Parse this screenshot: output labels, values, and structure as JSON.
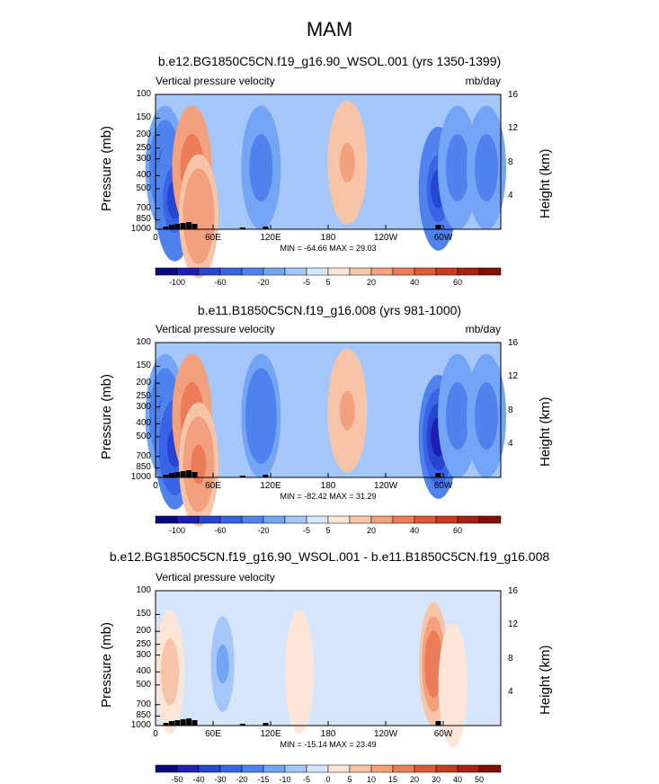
{
  "figure_title": "MAM",
  "colors": {
    "levels": [
      "#0a0a80",
      "#1e1eb4",
      "#2646d2",
      "#3a64e6",
      "#5082ee",
      "#74a4f4",
      "#a4c6f8",
      "#d6e6fa",
      "#fde6d8",
      "#f8c4a8",
      "#f2a07e",
      "#ec7c58",
      "#e05834",
      "#c83a1e",
      "#a82010",
      "#801008"
    ]
  },
  "chart_data": [
    {
      "type": "heatmap",
      "title": "b.e12.BG1850C5CN.f19_g16.90_WSOL.001 (yrs 1350-1399)",
      "variable": "Vertical pressure velocity",
      "units": "mb/day",
      "ylabel": "Pressure (mb)",
      "ylabel_right": "Height (km)",
      "yticks": [
        "100",
        "150",
        "200",
        "250",
        "300",
        "400",
        "500",
        "700",
        "850",
        "1000"
      ],
      "yticks_right": [
        "16",
        "12",
        "8",
        "4"
      ],
      "xticks": [
        "0",
        "60E",
        "120E",
        "180",
        "120W",
        "60W"
      ],
      "minmax": "MIN = -64.66  MAX = 29.03",
      "colorbar_labels": [
        "-100",
        "-60",
        "-20",
        "-5",
        "5",
        "20",
        "40",
        "60"
      ],
      "field": [
        {
          "lon": 10,
          "p": 350,
          "v": -40
        },
        {
          "lon": 20,
          "p": 600,
          "v": -60
        },
        {
          "lon": 38,
          "p": 350,
          "v": 25
        },
        {
          "lon": 45,
          "p": 800,
          "v": 20
        },
        {
          "lon": 110,
          "p": 350,
          "v": -30
        },
        {
          "lon": 200,
          "p": 320,
          "v": 12
        },
        {
          "lon": 295,
          "p": 500,
          "v": -60
        },
        {
          "lon": 315,
          "p": 350,
          "v": -25
        },
        {
          "lon": 345,
          "p": 350,
          "v": -30
        }
      ]
    },
    {
      "type": "heatmap",
      "title": "b.e11.B1850C5CN.f19_g16.008 (yrs 981-1000)",
      "variable": "Vertical pressure velocity",
      "units": "mb/day",
      "ylabel": "Pressure (mb)",
      "ylabel_right": "Height (km)",
      "yticks": [
        "100",
        "150",
        "200",
        "250",
        "300",
        "400",
        "500",
        "700",
        "850",
        "1000"
      ],
      "yticks_right": [
        "16",
        "12",
        "8",
        "4"
      ],
      "xticks": [
        "0",
        "60E",
        "120E",
        "180",
        "120W",
        "60W"
      ],
      "minmax": "MIN = -82.42  MAX = 31.29",
      "colorbar_labels": [
        "-100",
        "-60",
        "-20",
        "-5",
        "5",
        "20",
        "40",
        "60"
      ],
      "field": [
        {
          "lon": 10,
          "p": 350,
          "v": -40
        },
        {
          "lon": 20,
          "p": 600,
          "v": -70
        },
        {
          "lon": 38,
          "p": 350,
          "v": 28
        },
        {
          "lon": 45,
          "p": 800,
          "v": 22
        },
        {
          "lon": 110,
          "p": 350,
          "v": -35
        },
        {
          "lon": 200,
          "p": 320,
          "v": 12
        },
        {
          "lon": 295,
          "p": 500,
          "v": -80
        },
        {
          "lon": 315,
          "p": 350,
          "v": -25
        },
        {
          "lon": 345,
          "p": 350,
          "v": -30
        }
      ]
    },
    {
      "type": "heatmap",
      "title": "b.e12.BG1850C5CN.f19_g16.90_WSOL.001 - b.e11.B1850C5CN.f19_g16.008",
      "variable": "Vertical pressure velocity",
      "units": "",
      "ylabel": "Pressure (mb)",
      "ylabel_right": "Height (km)",
      "yticks": [
        "100",
        "150",
        "200",
        "250",
        "300",
        "400",
        "500",
        "700",
        "850",
        "1000"
      ],
      "yticks_right": [
        "16",
        "12",
        "8",
        "4"
      ],
      "xticks": [
        "0",
        "60E",
        "120E",
        "180",
        "120W",
        "60W"
      ],
      "minmax": "MIN = -15.14  MAX = 23.49",
      "colorbar_labels": [
        "-50",
        "-40",
        "-30",
        "-20",
        "-15",
        "-10",
        "-5",
        "0",
        "5",
        "10",
        "15",
        "20",
        "30",
        "40",
        "50"
      ],
      "field": [
        {
          "lon": 15,
          "p": 400,
          "v": 8
        },
        {
          "lon": 70,
          "p": 350,
          "v": -10
        },
        {
          "lon": 150,
          "p": 400,
          "v": 5
        },
        {
          "lon": 290,
          "p": 350,
          "v": 20
        },
        {
          "lon": 310,
          "p": 500,
          "v": 5
        }
      ]
    }
  ]
}
